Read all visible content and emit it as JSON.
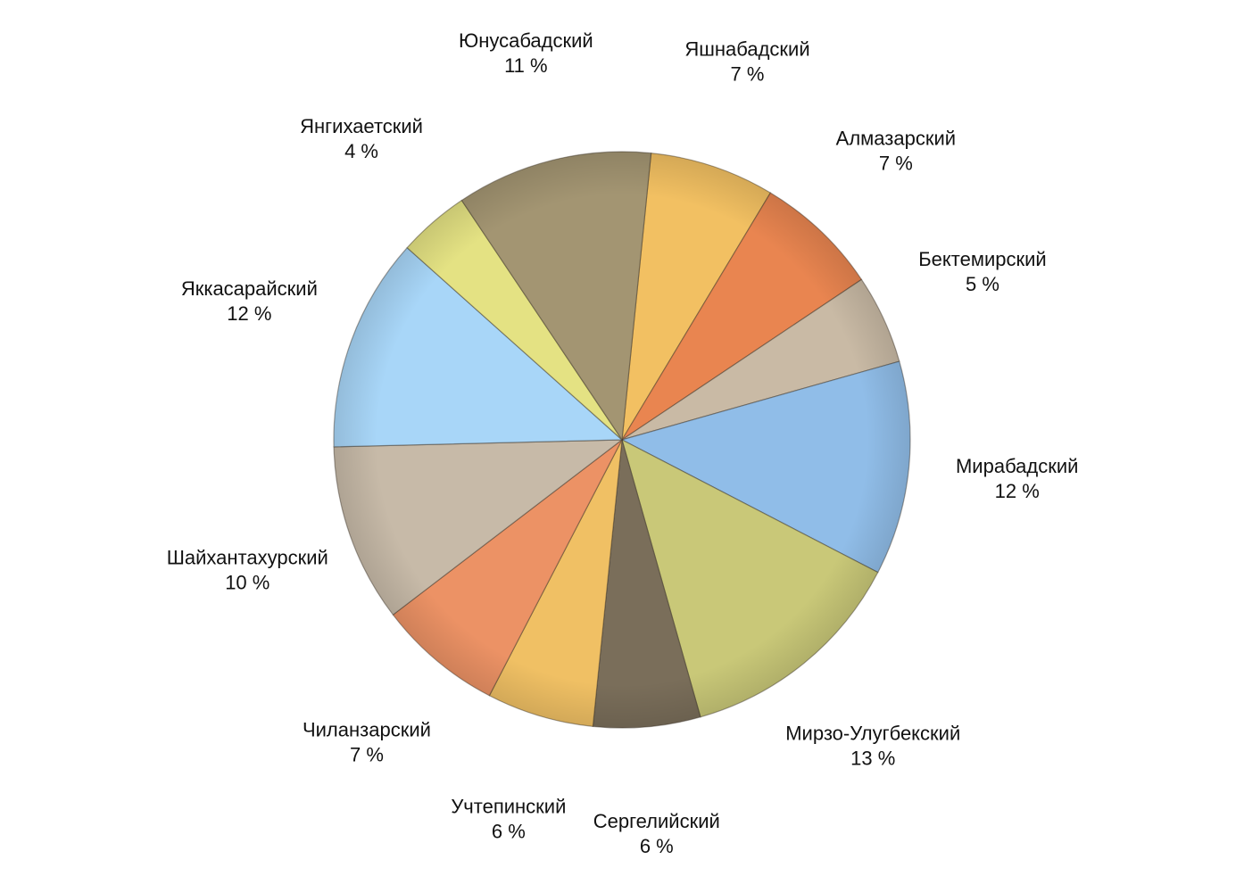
{
  "chart_data": {
    "type": "pie",
    "categories": [
      "Яшнабадский",
      "Алмазарский",
      "Бектемирский",
      "Мирабадский",
      "Мирзо-Улугбекский",
      "Сергелийский",
      "Учтепинский",
      "Чиланзарский",
      "Шайхантахурский",
      "Яккасарайский",
      "Янгихаетский",
      "Юнусабадский"
    ],
    "values": [
      7,
      7,
      5,
      12,
      13,
      6,
      6,
      7,
      10,
      12,
      4,
      11
    ],
    "value_labels": [
      "7 %",
      "7 %",
      "5 %",
      "12 %",
      "13 %",
      "6 %",
      "6 %",
      "7 %",
      "10 %",
      "12 %",
      "4 %",
      "11 %"
    ],
    "colors": [
      "#f2c062",
      "#e98550",
      "#c9baa5",
      "#90bde8",
      "#c9c878",
      "#7a6e5a",
      "#f0c064",
      "#ec9265",
      "#c7baa8",
      "#a8d6f8",
      "#e4e283",
      "#a39572"
    ]
  }
}
